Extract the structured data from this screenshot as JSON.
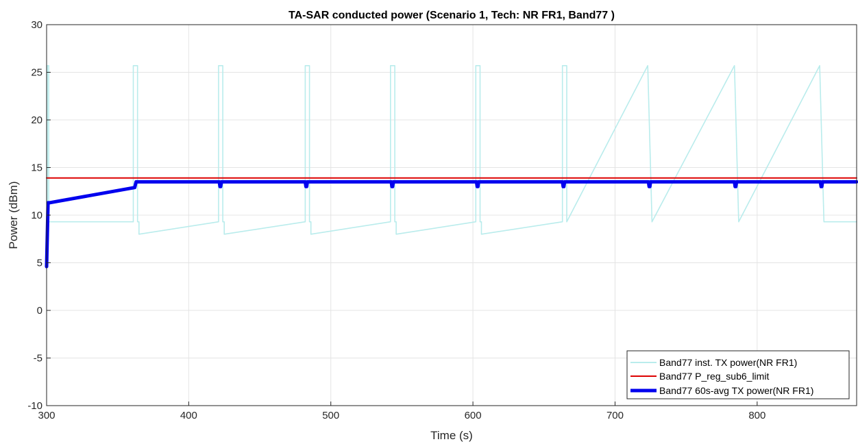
{
  "chart_data": {
    "type": "line",
    "title": "TA-SAR conducted power (Scenario 1, Tech: NR FR1, Band77 )",
    "xlabel": "Time (s)",
    "ylabel": "Power (dBm)",
    "xlim": [
      300,
      870
    ],
    "ylim": [
      -10,
      30
    ],
    "xticks": [
      300,
      400,
      500,
      600,
      700,
      800
    ],
    "yticks": [
      -10,
      -5,
      0,
      5,
      10,
      15,
      20,
      25,
      30
    ],
    "xtick_labels": [
      "300",
      "400",
      "500",
      "600",
      "700",
      "800"
    ],
    "ytick_labels": [
      "-10",
      "-5",
      "0",
      "5",
      "10",
      "15",
      "20",
      "25",
      "30"
    ],
    "grid": true,
    "legend_position": "bottom-right",
    "series": [
      {
        "name": "Band77 inst. TX power(NR FR1)",
        "color": "#b9ecec",
        "x": [
          300,
          300.5,
          300.5,
          301.5,
          301.5,
          361,
          361,
          364,
          364,
          365,
          365,
          421,
          421,
          424,
          424,
          425,
          425,
          482,
          482,
          485,
          485,
          486,
          486,
          542,
          542,
          545,
          545,
          546,
          546,
          602,
          602,
          605,
          605,
          606,
          606,
          663,
          663,
          666,
          666,
          723,
          723,
          726,
          726,
          784,
          784,
          787,
          787,
          844,
          844,
          847,
          847,
          870
        ],
        "y": [
          9.3,
          9.3,
          25.7,
          25.7,
          9.3,
          9.3,
          25.7,
          25.7,
          9.3,
          9.3,
          8.0,
          9.3,
          25.7,
          25.7,
          9.3,
          9.3,
          8.0,
          9.3,
          25.7,
          25.7,
          9.3,
          9.3,
          8.0,
          9.3,
          25.7,
          25.7,
          9.3,
          9.3,
          8.0,
          9.3,
          25.7,
          25.7,
          9.3,
          9.3,
          8.0,
          9.3,
          25.7,
          25.7,
          9.3,
          25.7,
          25.7,
          9.3,
          9.3,
          25.7,
          25.7,
          9.3,
          9.3,
          25.7,
          25.7,
          9.3,
          9.3,
          9.3
        ]
      },
      {
        "name": "Band77 P_reg_sub6_limit",
        "color": "#dd0000",
        "x": [
          300,
          870
        ],
        "y": [
          13.9,
          13.9
        ]
      },
      {
        "name": "Band77 60s-avg TX power(NR FR1)",
        "color": "#0000ee",
        "x": [
          300,
          301,
          302,
          362,
          363,
          421.5,
          422,
          422.5,
          423,
          482,
          482.5,
          483,
          483.5,
          542.5,
          543,
          543.5,
          544,
          602.5,
          603,
          603.5,
          604,
          663,
          663.5,
          664,
          664.5,
          723.5,
          724,
          724.5,
          725,
          784,
          784.5,
          785,
          785.5,
          844.5,
          845,
          845.5,
          846,
          870
        ],
        "y": [
          4.6,
          11.3,
          11.3,
          12.9,
          13.5,
          13.5,
          13.0,
          13.0,
          13.5,
          13.5,
          13.0,
          13.0,
          13.5,
          13.5,
          13.0,
          13.0,
          13.5,
          13.5,
          13.0,
          13.0,
          13.5,
          13.5,
          13.0,
          13.0,
          13.5,
          13.5,
          13.0,
          13.0,
          13.5,
          13.5,
          13.0,
          13.0,
          13.5,
          13.5,
          13.0,
          13.0,
          13.5,
          13.5
        ]
      }
    ]
  }
}
